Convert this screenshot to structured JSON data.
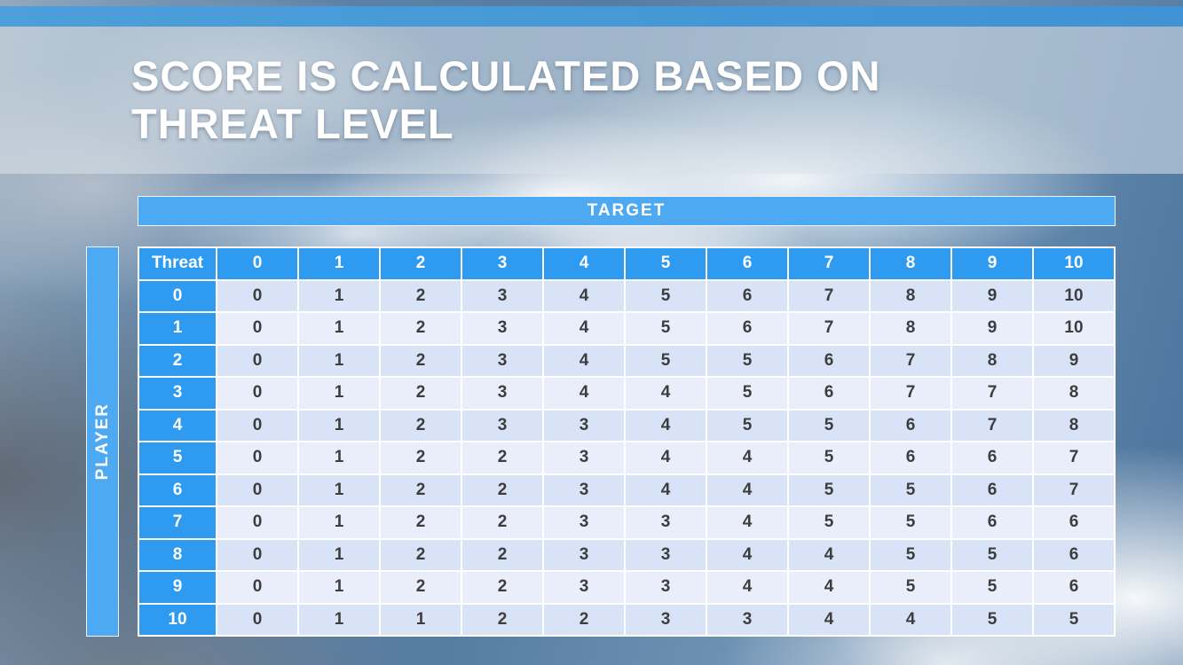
{
  "slide": {
    "title_lines": [
      "SCORE IS CALCULATED BASED ON",
      "THREAT LEVEL"
    ]
  },
  "matrix": {
    "x_axis_label": "TARGET",
    "y_axis_label": "PLAYER",
    "corner_label": "Threat",
    "column_headers": [
      "0",
      "1",
      "2",
      "3",
      "4",
      "5",
      "6",
      "7",
      "8",
      "9",
      "10"
    ],
    "rows": [
      {
        "header": "0",
        "values": [
          "0",
          "1",
          "2",
          "3",
          "4",
          "5",
          "6",
          "7",
          "8",
          "9",
          "10"
        ]
      },
      {
        "header": "1",
        "values": [
          "0",
          "1",
          "2",
          "3",
          "4",
          "5",
          "6",
          "7",
          "8",
          "9",
          "10"
        ]
      },
      {
        "header": "2",
        "values": [
          "0",
          "1",
          "2",
          "3",
          "4",
          "5",
          "5",
          "6",
          "7",
          "8",
          "9"
        ]
      },
      {
        "header": "3",
        "values": [
          "0",
          "1",
          "2",
          "3",
          "4",
          "4",
          "5",
          "6",
          "7",
          "7",
          "8"
        ]
      },
      {
        "header": "4",
        "values": [
          "0",
          "1",
          "2",
          "3",
          "3",
          "4",
          "5",
          "5",
          "6",
          "7",
          "8"
        ]
      },
      {
        "header": "5",
        "values": [
          "0",
          "1",
          "2",
          "2",
          "3",
          "4",
          "4",
          "5",
          "6",
          "6",
          "7"
        ]
      },
      {
        "header": "6",
        "values": [
          "0",
          "1",
          "2",
          "2",
          "3",
          "4",
          "4",
          "5",
          "5",
          "6",
          "7"
        ]
      },
      {
        "header": "7",
        "values": [
          "0",
          "1",
          "2",
          "2",
          "3",
          "3",
          "4",
          "5",
          "5",
          "6",
          "6"
        ]
      },
      {
        "header": "8",
        "values": [
          "0",
          "1",
          "2",
          "2",
          "3",
          "3",
          "4",
          "4",
          "5",
          "5",
          "6"
        ]
      },
      {
        "header": "9",
        "values": [
          "0",
          "1",
          "2",
          "2",
          "3",
          "3",
          "4",
          "4",
          "5",
          "5",
          "6"
        ]
      },
      {
        "header": "10",
        "values": [
          "0",
          "1",
          "1",
          "2",
          "2",
          "3",
          "3",
          "4",
          "4",
          "5",
          "5"
        ]
      }
    ]
  },
  "colors": {
    "top_strip_blue": "#4d9fdb",
    "axis_bar_blue": "#4da9f2",
    "header_blue": "#2e9bf0",
    "row_band_dark": "#d9e3f7",
    "row_band_light": "#eaeefb",
    "cell_text": "#3d3d3d",
    "title_text": "#ffffff"
  }
}
